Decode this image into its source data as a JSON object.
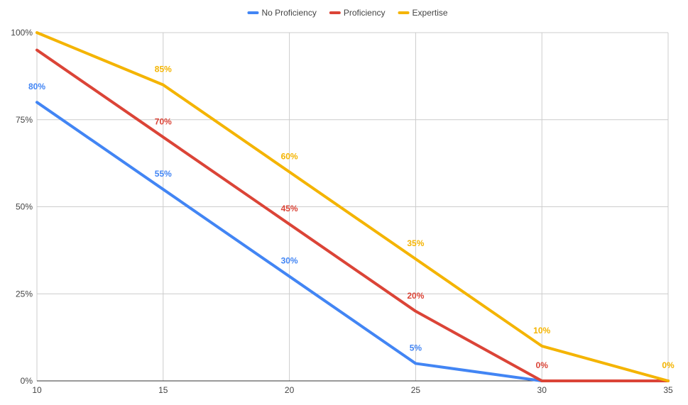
{
  "chart_data": {
    "type": "line",
    "title": "",
    "xlabel": "",
    "ylabel": "",
    "x": [
      10,
      15,
      20,
      25,
      30,
      35
    ],
    "xlim": [
      10,
      35
    ],
    "ylim": [
      0,
      100
    ],
    "x_ticks": [
      "10",
      "15",
      "20",
      "25",
      "30",
      "35"
    ],
    "y_ticks": [
      "0%",
      "25%",
      "50%",
      "75%",
      "100%"
    ],
    "grid": true,
    "legend_position": "top",
    "series": [
      {
        "name": "No Proficiency",
        "color": "#4285f4",
        "points": [
          [
            10,
            80
          ],
          [
            15,
            55
          ],
          [
            20,
            30
          ],
          [
            25,
            5
          ],
          [
            30,
            0
          ],
          [
            35,
            0
          ]
        ],
        "labels": [
          {
            "x": 10,
            "y": 80,
            "text": "80%"
          },
          {
            "x": 15,
            "y": 55,
            "text": "55%"
          },
          {
            "x": 20,
            "y": 30,
            "text": "30%"
          },
          {
            "x": 25,
            "y": 5,
            "text": "5%"
          }
        ]
      },
      {
        "name": "Proficiency",
        "color": "#db4437",
        "points": [
          [
            10,
            95
          ],
          [
            15,
            70
          ],
          [
            20,
            45
          ],
          [
            25,
            20
          ],
          [
            30,
            0
          ],
          [
            35,
            0
          ]
        ],
        "labels": [
          {
            "x": 15,
            "y": 70,
            "text": "70%"
          },
          {
            "x": 20,
            "y": 45,
            "text": "45%"
          },
          {
            "x": 25,
            "y": 20,
            "text": "20%"
          },
          {
            "x": 30,
            "y": 0,
            "text": "0%"
          }
        ]
      },
      {
        "name": "Expertise",
        "color": "#f4b400",
        "points": [
          [
            10,
            100
          ],
          [
            15,
            85
          ],
          [
            20,
            60
          ],
          [
            25,
            35
          ],
          [
            30,
            10
          ],
          [
            35,
            0
          ]
        ],
        "labels": [
          {
            "x": 15,
            "y": 85,
            "text": "85%"
          },
          {
            "x": 20,
            "y": 60,
            "text": "60%"
          },
          {
            "x": 25,
            "y": 35,
            "text": "35%"
          },
          {
            "x": 30,
            "y": 10,
            "text": "10%"
          },
          {
            "x": 35,
            "y": 0,
            "text": "0%"
          }
        ]
      }
    ]
  }
}
